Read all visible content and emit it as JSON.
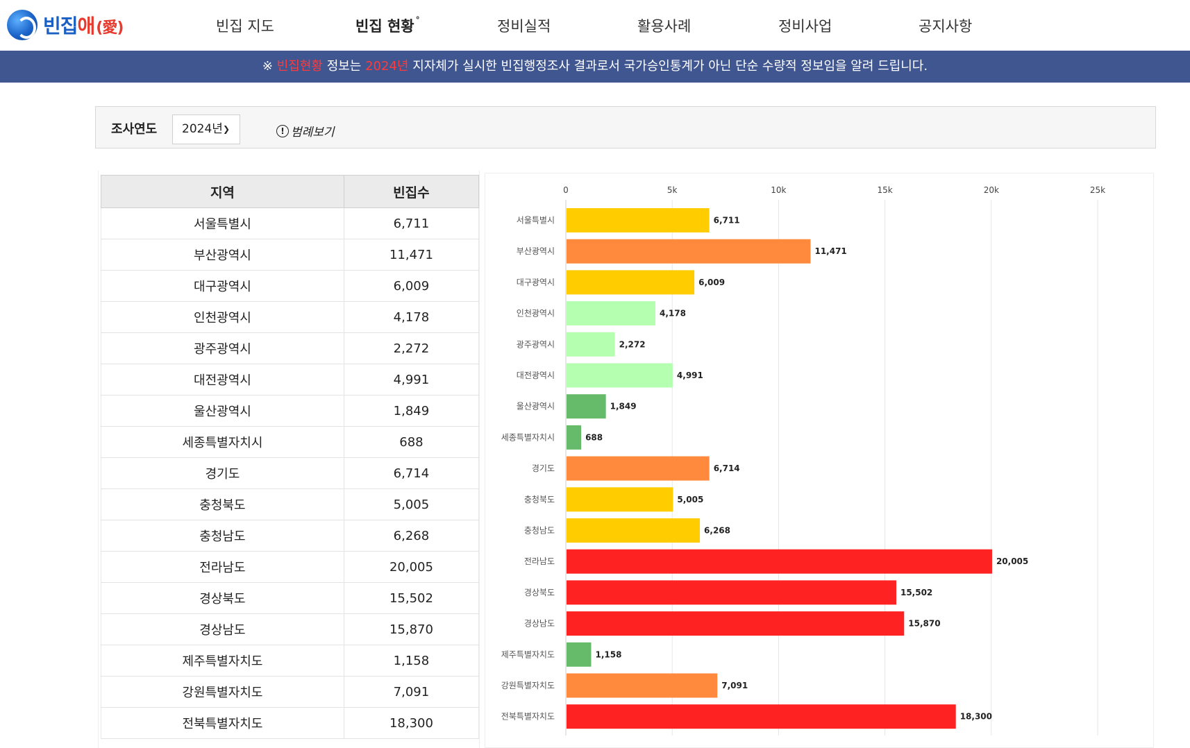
{
  "header": {
    "logo": {
      "text_main": "빈집",
      "text_accent": "애",
      "text_paren": "(愛)"
    },
    "nav": [
      {
        "label": "빈집 지도",
        "active": false
      },
      {
        "label": "빈집 현황",
        "active": true
      },
      {
        "label": "정비실적",
        "active": false
      },
      {
        "label": "활용사례",
        "active": false
      },
      {
        "label": "정비사업",
        "active": false
      },
      {
        "label": "공지사항",
        "active": false
      }
    ],
    "nav_active_mark": "°"
  },
  "notice": {
    "prefix": "※ ",
    "hl1": "빈집현황",
    "mid1": " 정보는 ",
    "hl2": "2024년",
    "rest": " 지자체가 실시한 빈집행정조사 결과로서 국가승인통계가 아닌 단순 수량적 정보임을 알려 드립니다."
  },
  "filter": {
    "label": "조사연도",
    "year": "2024년",
    "legend_link": "범례보기"
  },
  "table": {
    "headers": [
      "지역",
      "빈집수"
    ],
    "rows": [
      [
        "서울특별시",
        "6,711"
      ],
      [
        "부산광역시",
        "11,471"
      ],
      [
        "대구광역시",
        "6,009"
      ],
      [
        "인천광역시",
        "4,178"
      ],
      [
        "광주광역시",
        "2,272"
      ],
      [
        "대전광역시",
        "4,991"
      ],
      [
        "울산광역시",
        "1,849"
      ],
      [
        "세종특별자치시",
        "688"
      ],
      [
        "경기도",
        "6,714"
      ],
      [
        "충청북도",
        "5,005"
      ],
      [
        "충청남도",
        "6,268"
      ],
      [
        "전라남도",
        "20,005"
      ],
      [
        "경상북도",
        "15,502"
      ],
      [
        "경상남도",
        "15,870"
      ],
      [
        "제주특별자치도",
        "1,158"
      ],
      [
        "강원특별자치도",
        "7,091"
      ],
      [
        "전북특별자치도",
        "18,300"
      ]
    ]
  },
  "chart_data": {
    "type": "bar",
    "orientation": "horizontal",
    "categories": [
      "서울특별시",
      "부산광역시",
      "대구광역시",
      "인천광역시",
      "광주광역시",
      "대전광역시",
      "울산광역시",
      "세종특별자치시",
      "경기도",
      "충청북도",
      "충청남도",
      "전라남도",
      "경상북도",
      "경상남도",
      "제주특별자치도",
      "강원특별자치도",
      "전북특별자치도"
    ],
    "values": [
      6711,
      11471,
      6009,
      4178,
      2272,
      4991,
      1849,
      688,
      6714,
      5005,
      6268,
      20005,
      15502,
      15870,
      1158,
      7091,
      18300
    ],
    "value_labels": [
      "6,711",
      "11,471",
      "6,009",
      "4,178",
      "2,272",
      "4,991",
      "1,849",
      "688",
      "6,714",
      "5,005",
      "6,268",
      "20,005",
      "15,502",
      "15,870",
      "1,158",
      "7,091",
      "18,300"
    ],
    "bar_colors": [
      "#ffcc00",
      "#ff8a3d",
      "#ffcc00",
      "#b5ffb0",
      "#b5ffb0",
      "#b5ffb0",
      "#66bb6a",
      "#66bb6a",
      "#ff8a3d",
      "#ffcc00",
      "#ffcc00",
      "#ff2222",
      "#ff2222",
      "#ff2222",
      "#66bb6a",
      "#ff8a3d",
      "#ff2222"
    ],
    "x_ticks": [
      0,
      5000,
      10000,
      15000,
      20000,
      25000
    ],
    "x_tick_labels": [
      "0",
      "5k",
      "10k",
      "15k",
      "20k",
      "25k"
    ],
    "xlim": [
      0,
      25000
    ],
    "grid": true,
    "axis_position": "top"
  }
}
